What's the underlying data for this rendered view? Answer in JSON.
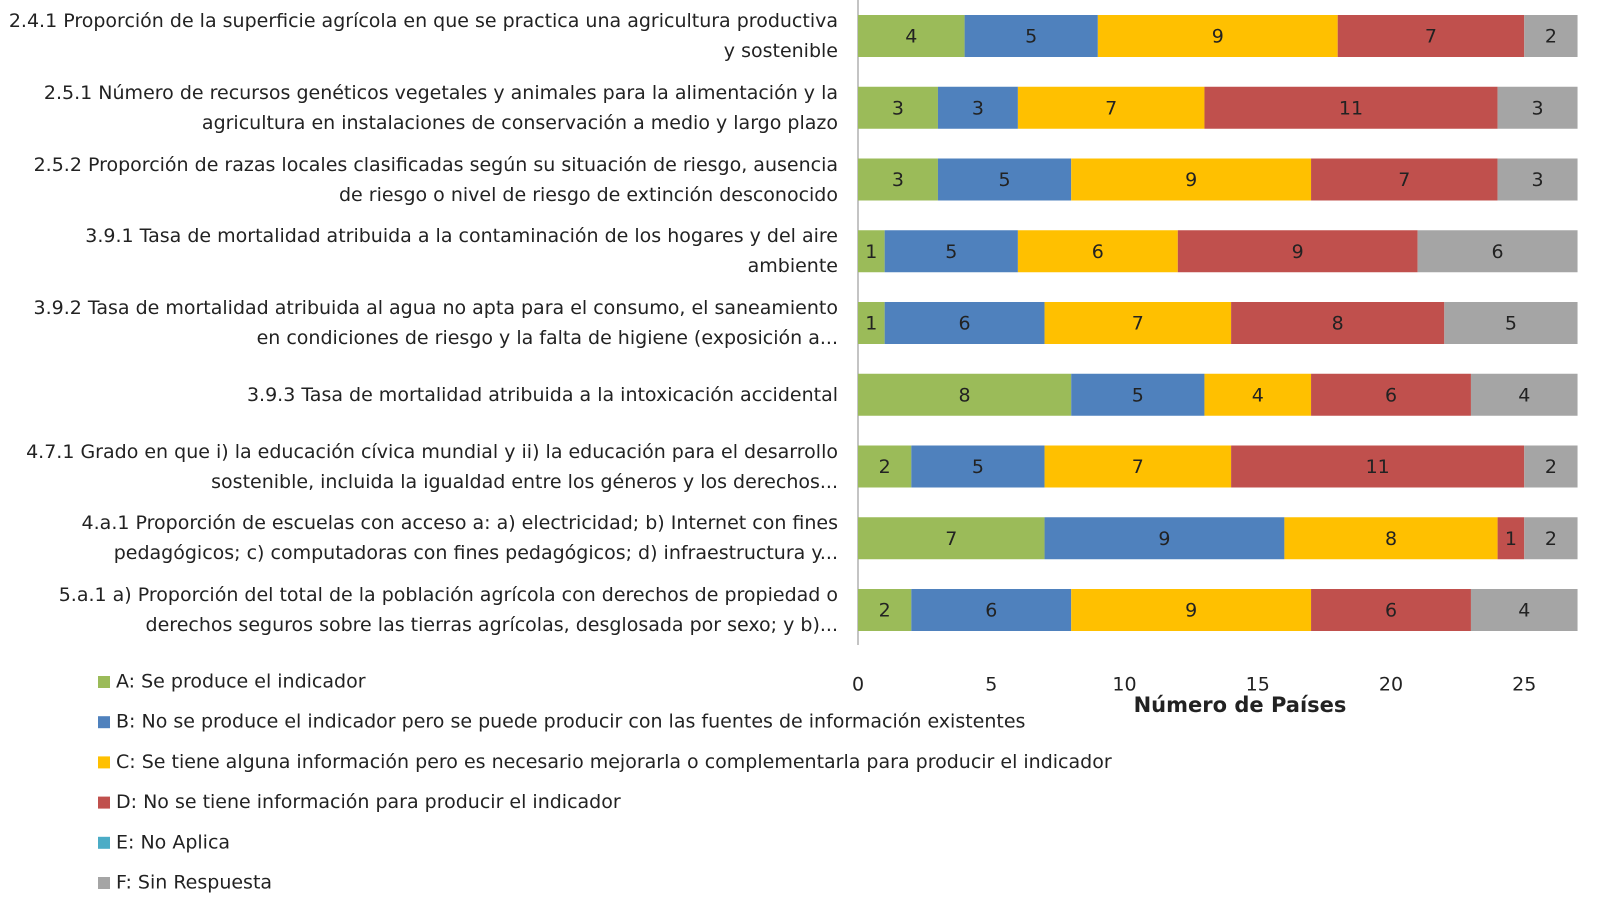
{
  "chart_data": {
    "type": "stacked_bar_horizontal",
    "categories": [
      "2.4.1 Proporción de la superficie agrícola en que se practica una agricultura productiva y sostenible",
      "2.5.1 Número de recursos genéticos vegetales y animales para la alimentación y la agricultura en instalaciones de conservación a medio y largo plazo",
      "2.5.2 Proporción de razas locales clasificadas según su situación de riesgo, ausencia de riesgo o nivel de riesgo de extinción desconocido",
      "3.9.1 Tasa de mortalidad atribuida a la contaminación de los hogares y del aire ambiente",
      "3.9.2 Tasa de mortalidad atribuida al agua no apta para el consumo, el saneamiento en condiciones de riesgo y la falta de higiene (exposición a...",
      "3.9.3 Tasa de mortalidad atribuida a la intoxicación accidental",
      "4.7.1 Grado en que i) la educación cívica mundial y ii) la educación para el desarrollo sostenible, incluida la igualdad entre los géneros y los derechos...",
      "4.a.1 Proporción de escuelas con acceso a: a) electricidad; b) Internet con fines pedagógicos; c) computadoras con fines pedagógicos; d) infraestructura y...",
      "5.a.1 a) Proporción del total de la población agrícola con derechos de propiedad o derechos seguros sobre las tierras agrícolas, desglosada por sexo; y b)..."
    ],
    "series": [
      {
        "name": "A: Se produce el indicador",
        "color": "#9bbb59",
        "values": [
          4,
          3,
          3,
          1,
          1,
          8,
          2,
          7,
          2
        ]
      },
      {
        "name": "B: No se produce el indicador pero se puede producir con las fuentes de información existentes",
        "color": "#4f81bd",
        "values": [
          5,
          3,
          5,
          5,
          6,
          5,
          5,
          9,
          6
        ]
      },
      {
        "name": "C: Se tiene alguna información pero es necesario mejorarla o complementarla para producir el indicador",
        "color": "#ffc000",
        "values": [
          9,
          7,
          9,
          6,
          7,
          4,
          7,
          8,
          9
        ]
      },
      {
        "name": "D: No se tiene información para producir el indicador",
        "color": "#c0504d",
        "values": [
          7,
          11,
          7,
          9,
          8,
          6,
          11,
          1,
          6
        ]
      },
      {
        "name": "E: No Aplica",
        "color": "#4bacc6",
        "values": [
          0,
          0,
          0,
          0,
          0,
          0,
          0,
          0,
          0
        ]
      },
      {
        "name": "F: Sin Respuesta",
        "color": "#a5a5a5",
        "values": [
          2,
          3,
          3,
          6,
          5,
          4,
          2,
          2,
          4
        ]
      }
    ],
    "xlabel": "Número de Países",
    "xlim": [
      0,
      27
    ],
    "xticks": [
      0,
      5,
      10,
      15,
      20,
      25
    ]
  }
}
